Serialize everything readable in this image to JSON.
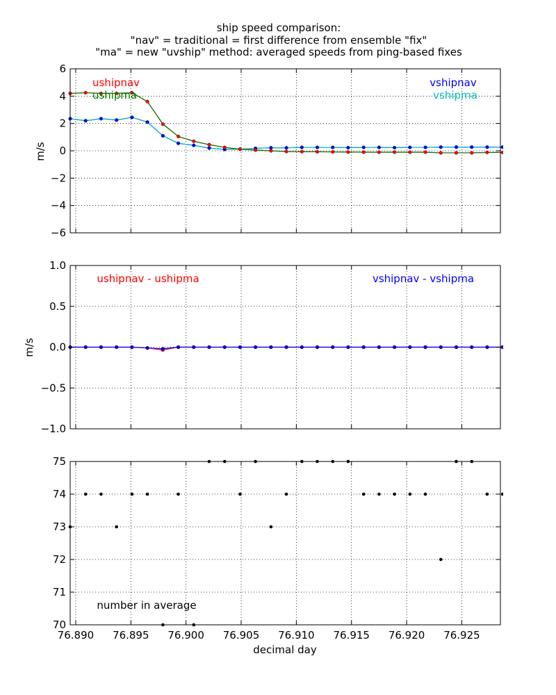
{
  "title_lines": [
    "ship speed comparison:",
    "\"nav\" = traditional = first difference from ensemble \"fix\"",
    "\"ma\" = new \"uvship\" method: averaged speeds from ping-based fixes"
  ],
  "colors": {
    "ushipnav": "#ff0000",
    "ushipma": "#008000",
    "vshipnav": "#0000ff",
    "vshipma": "#00bfbf",
    "diff_u": "#ff0000",
    "diff_v": "#0000ff",
    "count": "#000000"
  },
  "chart_data": [
    {
      "type": "line",
      "ylabel": "m/s",
      "xlim": [
        76.8895,
        76.9285
      ],
      "ylim": [
        -6,
        6
      ],
      "yticks": [
        "6",
        "4",
        "2",
        "0",
        "−2",
        "−4",
        "−6"
      ],
      "grid": true,
      "x": [
        76.8895,
        76.8909,
        76.8923,
        76.8937,
        76.8951,
        76.8965,
        76.8979,
        76.8993,
        76.9007,
        76.9021,
        76.9035,
        76.9049,
        76.9063,
        76.9077,
        76.9091,
        76.9105,
        76.9119,
        76.9133,
        76.9147,
        76.9161,
        76.9175,
        76.9189,
        76.9203,
        76.9217,
        76.9231,
        76.9245,
        76.9259,
        76.9273,
        76.9287
      ],
      "series": [
        {
          "name": "ushipnav",
          "values": [
            4.2,
            4.25,
            4.2,
            4.2,
            4.25,
            3.6,
            1.95,
            1.05,
            0.7,
            0.45,
            0.25,
            0.12,
            0.05,
            0.0,
            -0.05,
            -0.06,
            -0.07,
            -0.08,
            -0.09,
            -0.1,
            -0.1,
            -0.1,
            -0.1,
            -0.1,
            -0.15,
            -0.15,
            -0.15,
            -0.12,
            -0.12
          ]
        },
        {
          "name": "ushipma",
          "values": [
            4.2,
            4.25,
            4.2,
            4.2,
            4.25,
            3.6,
            1.97,
            1.05,
            0.7,
            0.45,
            0.25,
            0.12,
            0.05,
            0.0,
            -0.05,
            -0.06,
            -0.07,
            -0.08,
            -0.09,
            -0.1,
            -0.1,
            -0.1,
            -0.1,
            -0.1,
            -0.15,
            -0.15,
            -0.15,
            -0.12,
            -0.12
          ]
        },
        {
          "name": "vshipnav",
          "values": [
            2.35,
            2.2,
            2.35,
            2.25,
            2.45,
            2.1,
            1.1,
            0.55,
            0.4,
            0.2,
            0.1,
            0.12,
            0.18,
            0.22,
            0.22,
            0.25,
            0.25,
            0.25,
            0.23,
            0.25,
            0.25,
            0.23,
            0.25,
            0.25,
            0.27,
            0.27,
            0.27,
            0.27,
            0.27
          ]
        },
        {
          "name": "vshipma",
          "values": [
            2.35,
            2.2,
            2.35,
            2.25,
            2.45,
            2.1,
            1.1,
            0.55,
            0.4,
            0.2,
            0.1,
            0.12,
            0.18,
            0.22,
            0.22,
            0.25,
            0.25,
            0.25,
            0.23,
            0.25,
            0.25,
            0.23,
            0.25,
            0.25,
            0.27,
            0.27,
            0.27,
            0.27,
            0.27
          ]
        }
      ],
      "legend": [
        {
          "text": "ushipnav",
          "color_key": "ushipnav",
          "position": "top-left"
        },
        {
          "text": "ushipma",
          "color_key": "ushipma",
          "position": "top-left"
        },
        {
          "text": "vshipnav",
          "color_key": "vshipnav",
          "position": "top-right"
        },
        {
          "text": "vshipma",
          "color_key": "vshipma",
          "position": "top-right"
        }
      ]
    },
    {
      "type": "line",
      "ylabel": "m/s",
      "xlim": [
        76.8895,
        76.9285
      ],
      "ylim": [
        -1.0,
        1.0
      ],
      "yticks": [
        "1.0",
        "0.5",
        "0.0",
        "−0.5",
        "−1.0"
      ],
      "grid": true,
      "x": [
        76.8895,
        76.8909,
        76.8923,
        76.8937,
        76.8951,
        76.8965,
        76.8979,
        76.8993,
        76.9007,
        76.9021,
        76.9035,
        76.9049,
        76.9063,
        76.9077,
        76.9091,
        76.9105,
        76.9119,
        76.9133,
        76.9147,
        76.9161,
        76.9175,
        76.9189,
        76.9203,
        76.9217,
        76.9231,
        76.9245,
        76.9259,
        76.9273,
        76.9287
      ],
      "series": [
        {
          "name": "ushipnav - ushipma",
          "values": [
            0,
            0,
            0,
            0,
            0,
            -0.01,
            -0.035,
            0,
            0,
            0,
            0,
            0,
            0,
            0,
            0,
            0,
            0,
            0,
            0,
            0,
            0,
            0,
            0,
            0,
            0,
            0,
            0,
            0,
            0
          ]
        },
        {
          "name": "vshipnav - vshipma",
          "values": [
            0,
            0,
            0,
            0,
            0,
            -0.01,
            -0.02,
            0,
            0,
            0,
            0,
            0,
            0,
            0,
            0,
            0,
            0,
            0,
            0,
            0,
            0,
            0,
            0,
            0,
            0,
            0,
            0,
            0,
            0
          ]
        }
      ],
      "legend": [
        {
          "text": "ushipnav - ushipma",
          "color_key": "diff_u",
          "position": "top-left"
        },
        {
          "text": "vshipnav - vshipma",
          "color_key": "diff_v",
          "position": "top-right"
        }
      ]
    },
    {
      "type": "scatter",
      "xlabel": "decimal day",
      "xlim": [
        76.8895,
        76.9285
      ],
      "ylim": [
        70,
        75
      ],
      "yticks": [
        "75",
        "74",
        "73",
        "72",
        "71",
        "70"
      ],
      "xticks": [
        "76.890",
        "76.895",
        "76.900",
        "76.905",
        "76.910",
        "76.915",
        "76.920",
        "76.925"
      ],
      "xtick_values": [
        76.89,
        76.895,
        76.9,
        76.905,
        76.91,
        76.915,
        76.92,
        76.925
      ],
      "grid": true,
      "annotation": "number in average",
      "x": [
        76.8895,
        76.8909,
        76.8923,
        76.8937,
        76.8951,
        76.8965,
        76.8979,
        76.8993,
        76.9007,
        76.9021,
        76.9035,
        76.9049,
        76.9063,
        76.9077,
        76.9091,
        76.9105,
        76.9119,
        76.9133,
        76.9147,
        76.9161,
        76.9175,
        76.9189,
        76.9203,
        76.9217,
        76.9231,
        76.9245,
        76.9259,
        76.9273,
        76.9287
      ],
      "values": [
        73,
        74,
        74,
        73,
        74,
        74,
        70,
        74,
        70,
        75,
        75,
        74,
        75,
        73,
        74,
        75,
        75,
        75,
        75,
        74,
        74,
        74,
        74,
        74,
        72,
        75,
        75,
        74,
        74
      ]
    }
  ]
}
